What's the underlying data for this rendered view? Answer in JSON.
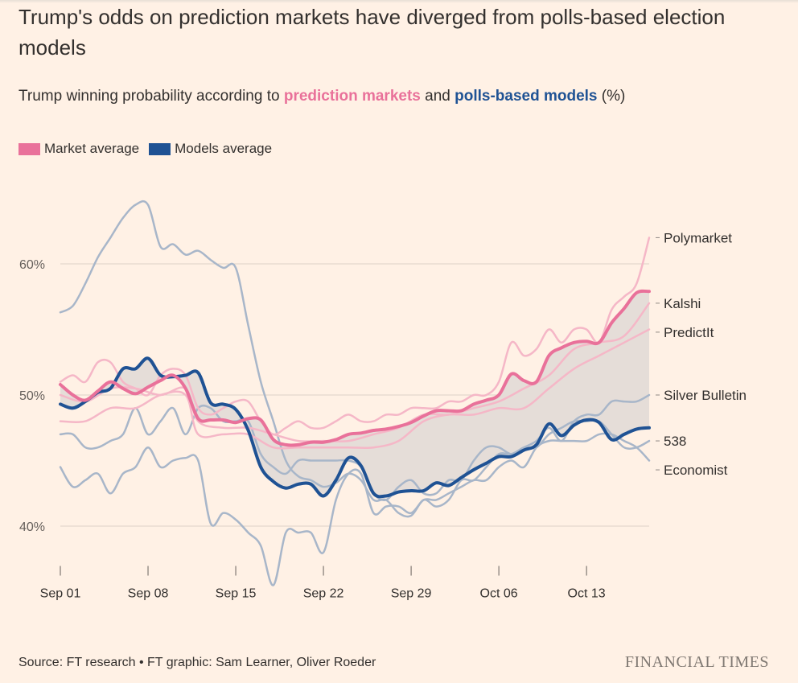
{
  "header": {
    "title": "Trump's odds on prediction markets have diverged from polls-based election models",
    "subtitle_prefix": "Trump winning probability according to ",
    "subtitle_markets": "prediction markets",
    "subtitle_and": " and ",
    "subtitle_models": "polls-based models",
    "subtitle_suffix": " (%)"
  },
  "legend": {
    "market": "Market average",
    "models": "Models average"
  },
  "colors": {
    "market_avg": "#E9719A",
    "market_lines": "#F5B7C7",
    "models_avg": "#1F5294",
    "model_lines": "#A8B6C9",
    "band": "#E5DDD8",
    "grid": "#DCD1C6",
    "background": "#FFF1E5"
  },
  "footer": {
    "source": "Source: FT research • FT graphic: Sam Learner, Oliver Roeder",
    "logo": "FINANCIAL TIMES"
  },
  "chart_data": {
    "type": "line",
    "title": "Trump winning probability according to prediction markets and polls-based models (%)",
    "xlabel": "",
    "ylabel": "",
    "x_unit": "days since Sep 01",
    "xlim": [
      0,
      47
    ],
    "ylim": [
      35,
      65
    ],
    "grid": true,
    "legend_position": "top-left",
    "ticks_y": [
      {
        "value": 40,
        "label": "40%"
      },
      {
        "value": 50,
        "label": "50%"
      },
      {
        "value": 60,
        "label": "60%"
      }
    ],
    "ticks_x": [
      {
        "value": 0,
        "label": "Sep 01"
      },
      {
        "value": 7,
        "label": "Sep 08"
      },
      {
        "value": 14,
        "label": "Sep 15"
      },
      {
        "value": 21,
        "label": "Sep 22"
      },
      {
        "value": 28,
        "label": "Sep 29"
      },
      {
        "value": 35,
        "label": "Oct 06"
      },
      {
        "value": 42,
        "label": "Oct 13"
      }
    ],
    "band": {
      "upper": "Market average",
      "lower": "Models average"
    },
    "series": [
      {
        "name": "Polymarket",
        "group": "market",
        "label": "Polymarket",
        "x": [
          0,
          1,
          2,
          3,
          4,
          5,
          6,
          7,
          8,
          9,
          10,
          11,
          12,
          13,
          14,
          15,
          16,
          17,
          18,
          19,
          20,
          21,
          22,
          23,
          24,
          25,
          26,
          27,
          28,
          29,
          30,
          31,
          32,
          33,
          34,
          35,
          36,
          37,
          38,
          39,
          40,
          41,
          42,
          43,
          44,
          45,
          46,
          47
        ],
        "values": [
          51,
          51.5,
          51,
          52.5,
          52.5,
          51,
          50.5,
          50,
          51.5,
          52,
          51.5,
          49,
          48.5,
          49,
          49.5,
          49.5,
          48,
          47,
          47.5,
          48,
          47.5,
          47.5,
          48,
          48.5,
          48,
          48,
          48.5,
          48.5,
          49,
          49,
          49,
          49.5,
          49.5,
          50,
          50,
          51,
          54,
          53,
          53.5,
          55,
          54,
          55,
          55,
          54,
          56.5,
          57.5,
          58.5,
          62
        ]
      },
      {
        "name": "Kalshi",
        "group": "market",
        "label": "Kalshi",
        "x": [
          0,
          2,
          4,
          6,
          8,
          10,
          11,
          13,
          15,
          17,
          19,
          21,
          23,
          25,
          27,
          29,
          31,
          33,
          35,
          37,
          39,
          41,
          43,
          45,
          47
        ],
        "values": [
          50,
          49.5,
          50.5,
          50.5,
          50,
          50.5,
          48,
          47.5,
          47.5,
          47,
          46.5,
          46.5,
          46.5,
          47,
          47.5,
          48.5,
          48.5,
          49,
          49.5,
          50.5,
          51.5,
          53.5,
          54,
          54.5,
          57
        ]
      },
      {
        "name": "PredictIt",
        "group": "market",
        "label": "PredictIt",
        "x": [
          0,
          2,
          4,
          6,
          8,
          10,
          11,
          13,
          15,
          17,
          19,
          21,
          23,
          25,
          27,
          29,
          31,
          33,
          35,
          37,
          39,
          41,
          43,
          45,
          47
        ],
        "values": [
          48,
          48,
          49,
          49,
          50,
          50,
          47,
          47,
          47,
          46,
          46,
          46,
          46,
          46,
          46.5,
          48,
          48.5,
          48.5,
          49,
          49,
          50.5,
          52,
          53,
          54,
          55
        ]
      },
      {
        "name": "Market average",
        "group": "market-average",
        "label": "",
        "x": [
          0,
          1,
          2,
          3,
          4,
          5,
          6,
          7,
          8,
          9,
          10,
          11,
          12,
          13,
          14,
          15,
          16,
          17,
          18,
          19,
          20,
          21,
          22,
          23,
          24,
          25,
          26,
          27,
          28,
          29,
          30,
          31,
          32,
          33,
          34,
          35,
          36,
          37,
          38,
          39,
          40,
          41,
          42,
          43,
          44,
          45,
          46,
          47
        ],
        "values": [
          50.8,
          50,
          49.6,
          50.3,
          51,
          50.5,
          50.1,
          50.6,
          51.1,
          51.5,
          50.5,
          48.2,
          48.1,
          48.1,
          47.9,
          48.2,
          48.1,
          46.6,
          46.2,
          46.2,
          46.4,
          46.4,
          46.6,
          47,
          47.1,
          47.3,
          47.4,
          47.6,
          47.9,
          48.4,
          48.8,
          48.8,
          48.8,
          49.3,
          49.6,
          50,
          51.6,
          51.1,
          51,
          53,
          53.6,
          54,
          54.1,
          54,
          55.5,
          56.6,
          57.8,
          57.9
        ]
      },
      {
        "name": "Silver Bulletin",
        "group": "model",
        "label": "Silver Bulletin",
        "x": [
          0,
          1,
          2,
          3,
          4,
          5,
          6,
          7,
          8,
          9,
          10,
          11,
          12,
          13,
          14,
          15,
          16,
          17,
          18,
          19,
          20,
          21,
          22,
          23,
          24,
          25,
          26,
          27,
          28,
          29,
          30,
          31,
          32,
          33,
          34,
          35,
          36,
          37,
          38,
          39,
          40,
          41,
          42,
          43,
          44,
          45,
          46,
          47
        ],
        "values": [
          56.3,
          56.8,
          58.5,
          60.5,
          62,
          63.5,
          64.5,
          64.5,
          61.3,
          61.5,
          60.7,
          61,
          60.3,
          59.7,
          59.7,
          55.3,
          51,
          48,
          45,
          43.8,
          43.5,
          43,
          43.3,
          44,
          43.5,
          42,
          42,
          41,
          40.8,
          42,
          41.5,
          42,
          43.5,
          43.5,
          44.5,
          45.5,
          45.5,
          46,
          46.5,
          47.5,
          46.5,
          48,
          48.5,
          48.5,
          49.5,
          49.5,
          49.5,
          50
        ]
      },
      {
        "name": "538",
        "group": "model",
        "label": "538",
        "x": [
          0,
          1,
          2,
          3,
          4,
          5,
          6,
          7,
          8,
          9,
          10,
          11,
          12,
          13,
          14,
          15,
          16,
          17,
          18,
          19,
          20,
          21,
          22,
          23,
          24,
          25,
          26,
          27,
          28,
          29,
          30,
          31,
          32,
          33,
          34,
          35,
          36,
          37,
          38,
          39,
          40,
          41,
          42,
          43,
          44,
          45,
          46,
          47
        ],
        "values": [
          47,
          47,
          46,
          46,
          46.5,
          47,
          49,
          47,
          48,
          49,
          47,
          49,
          49,
          48,
          48,
          48,
          45.5,
          44.5,
          44,
          45,
          45,
          45,
          45,
          45,
          44.5,
          42.5,
          42,
          43,
          43.5,
          42.5,
          42.5,
          43.5,
          43.5,
          45,
          46,
          46,
          45.5,
          46,
          46,
          47,
          47.5,
          48,
          48,
          48,
          47,
          46,
          46,
          46.5
        ]
      },
      {
        "name": "Economist",
        "group": "model",
        "label": "Economist",
        "x": [
          0,
          1,
          2,
          3,
          4,
          5,
          6,
          7,
          8,
          9,
          10,
          11,
          12,
          13,
          14,
          15,
          16,
          17,
          18,
          19,
          20,
          21,
          22,
          23,
          24,
          25,
          26,
          27,
          28,
          29,
          30,
          31,
          32,
          33,
          34,
          35,
          36,
          37,
          38,
          39,
          40,
          41,
          42,
          43,
          44,
          45,
          46,
          47
        ],
        "values": [
          44.5,
          43,
          43.5,
          44,
          42.5,
          44,
          44.5,
          46,
          44.5,
          45,
          45.2,
          45,
          40.2,
          41,
          40.5,
          39.5,
          38.5,
          35.5,
          39.5,
          39.5,
          39.5,
          38,
          42,
          44,
          44,
          41,
          41.5,
          41.5,
          41,
          42,
          42,
          42.5,
          43,
          43.5,
          43.5,
          44.5,
          45,
          44.5,
          46,
          46.5,
          46.5,
          46.5,
          46.5,
          47,
          47,
          46.5,
          46,
          45
        ]
      },
      {
        "name": "Models average",
        "group": "models-average",
        "label": "",
        "x": [
          0,
          1,
          2,
          3,
          4,
          5,
          6,
          7,
          8,
          9,
          10,
          11,
          12,
          13,
          14,
          15,
          16,
          17,
          18,
          19,
          20,
          21,
          22,
          23,
          24,
          25,
          26,
          27,
          28,
          29,
          30,
          31,
          32,
          33,
          34,
          35,
          36,
          37,
          38,
          39,
          40,
          41,
          42,
          43,
          44,
          45,
          46,
          47
        ],
        "values": [
          49.3,
          49,
          49.5,
          50.2,
          50.5,
          52,
          52,
          52.8,
          51.5,
          51.4,
          51.5,
          51.7,
          49.4,
          49.3,
          48.9,
          47.3,
          44.5,
          43.4,
          42.9,
          43.2,
          43.2,
          42.3,
          43.5,
          45.2,
          44.6,
          42.5,
          42.3,
          42.6,
          42.7,
          42.7,
          43.3,
          43.1,
          43.7,
          44.3,
          44.8,
          45.3,
          45.3,
          45.8,
          46.2,
          47.8,
          46.9,
          47.7,
          48.1,
          47.9,
          46.6,
          47,
          47.4,
          47.5
        ]
      }
    ]
  }
}
